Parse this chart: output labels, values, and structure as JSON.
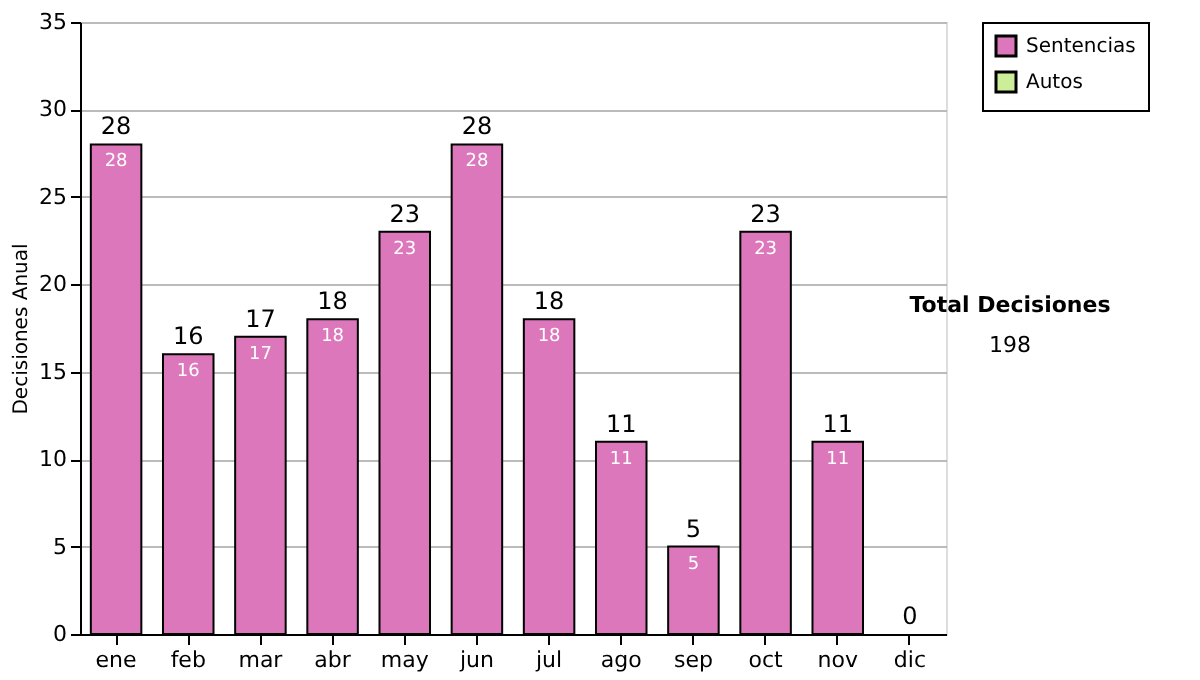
{
  "chart_data": {
    "type": "bar",
    "ylabel": "Decisiones Anual",
    "categories": [
      "ene",
      "feb",
      "mar",
      "abr",
      "may",
      "jun",
      "jul",
      "ago",
      "sep",
      "oct",
      "nov",
      "dic"
    ],
    "series": [
      {
        "name": "Sentencias",
        "color": "#dd77bb",
        "values": [
          28,
          16,
          17,
          18,
          23,
          28,
          18,
          11,
          5,
          23,
          11,
          0
        ],
        "value_labels": [
          "28",
          "16",
          "17",
          "18",
          "23",
          "28",
          "18",
          "11",
          "5",
          "23",
          "11",
          null
        ]
      },
      {
        "name": "Autos",
        "color": "#ccee99",
        "values": [
          0,
          0,
          0,
          0,
          0,
          0,
          0,
          0,
          0,
          0,
          0,
          0
        ],
        "value_labels": [
          null,
          null,
          null,
          null,
          null,
          null,
          null,
          null,
          null,
          null,
          null,
          null
        ]
      }
    ],
    "stacked": true,
    "totals": [
      "28",
      "16",
      "17",
      "18",
      "23",
      "28",
      "18",
      "11",
      "5",
      "23",
      "11",
      "0"
    ],
    "ylim": [
      0,
      35
    ],
    "yticks": [
      0,
      5,
      10,
      15,
      20,
      25,
      30,
      35
    ],
    "grid": "y",
    "legend": "right",
    "annotations": [
      "Total Decisiones",
      "198"
    ]
  }
}
